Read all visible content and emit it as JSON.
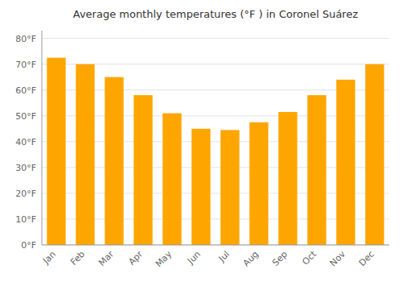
{
  "chart_data": {
    "type": "bar",
    "title": "Average monthly temperatures (°F ) in Coronel Suárez",
    "categories": [
      "Jan",
      "Feb",
      "Mar",
      "Apr",
      "May",
      "Jun",
      "Jul",
      "Aug",
      "Sep",
      "Oct",
      "Nov",
      "Dec"
    ],
    "values": [
      72.5,
      70.0,
      65.0,
      58.0,
      51.0,
      45.0,
      44.5,
      47.5,
      51.5,
      58.0,
      64.0,
      70.0
    ],
    "color": "#FFA500",
    "ylim": [
      0,
      83
    ],
    "yticks": [
      {
        "value": 0,
        "label": "0°F"
      },
      {
        "value": 10,
        "label": "10°F"
      },
      {
        "value": 20,
        "label": "20°F"
      },
      {
        "value": 30,
        "label": "30°F"
      },
      {
        "value": 40,
        "label": "40°F"
      },
      {
        "value": 50,
        "label": "50°F"
      },
      {
        "value": 60,
        "label": "60°F"
      },
      {
        "value": 70,
        "label": "70°F"
      },
      {
        "value": 80,
        "label": "80°F"
      }
    ],
    "grid": true
  }
}
